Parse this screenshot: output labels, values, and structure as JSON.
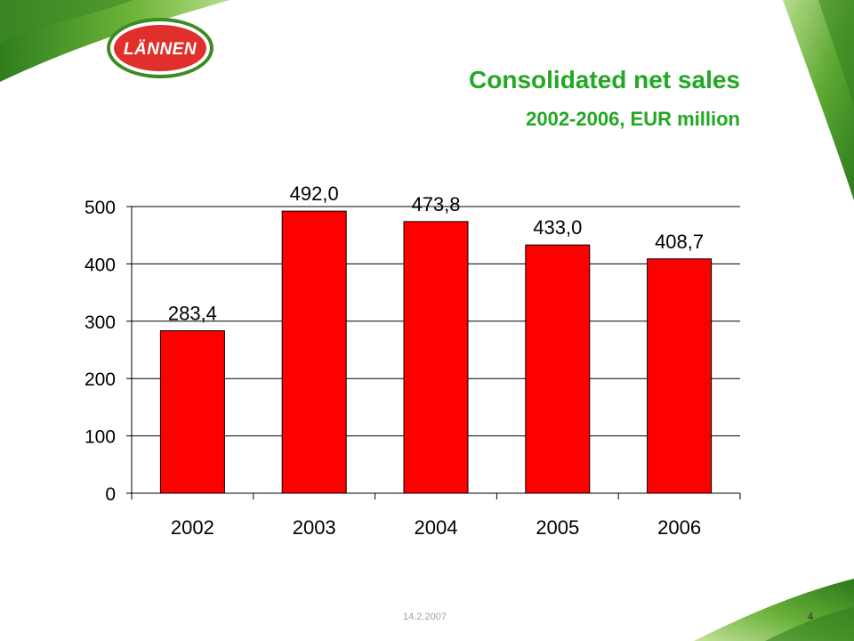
{
  "logo": {
    "text": "LÄNNEN"
  },
  "title": "Consolidated net sales",
  "subtitle": "2002-2006, EUR million",
  "footer": {
    "date": "14.2.2007",
    "page": "4"
  },
  "colors": {
    "bar": "#ff0000",
    "title": "#22a822",
    "logo_red": "#e0302b",
    "leaf_green": "#4f9e2b"
  },
  "chart_data": {
    "type": "bar",
    "categories": [
      "2002",
      "2003",
      "2004",
      "2005",
      "2006"
    ],
    "values": [
      283.4,
      492.0,
      473.8,
      433.0,
      408.7
    ],
    "value_labels": [
      "283,4",
      "492,0",
      "473,8",
      "433,0",
      "408,7"
    ],
    "title": "",
    "xlabel": "",
    "ylabel": "",
    "ylim": [
      0,
      500
    ],
    "yticks": [
      0,
      100,
      200,
      300,
      400,
      500
    ],
    "grid": true,
    "legend": "none"
  }
}
